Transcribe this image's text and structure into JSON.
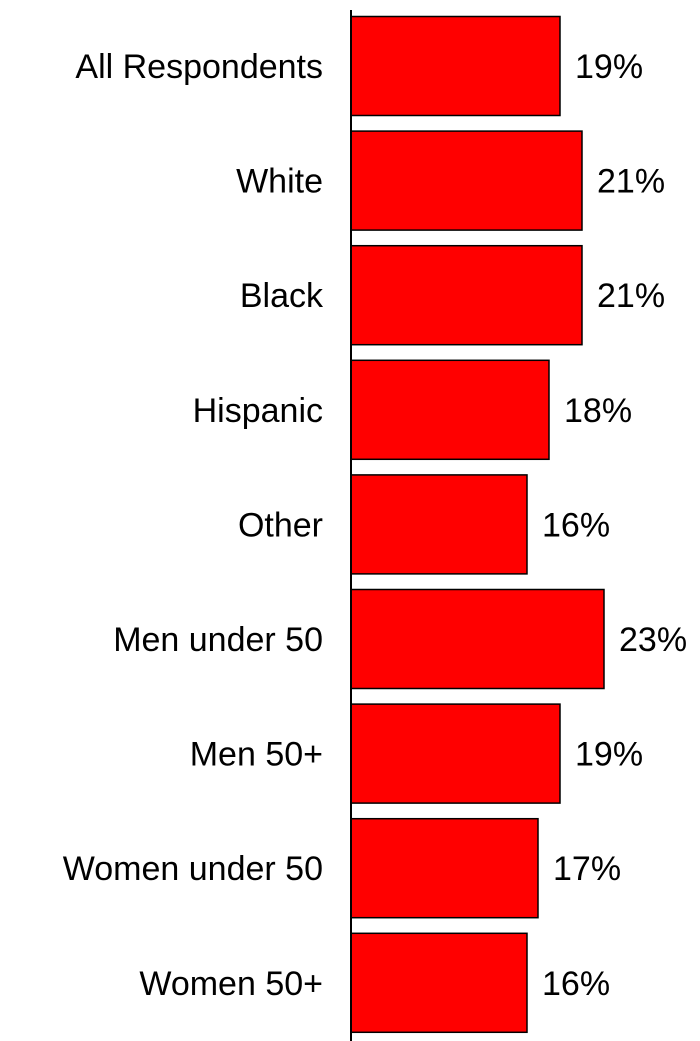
{
  "chart_data": {
    "type": "bar",
    "orientation": "horizontal",
    "categories": [
      "All Respondents",
      "White",
      "Black",
      "Hispanic",
      "Other",
      "Men under 50",
      "Men 50+",
      "Women under 50",
      "Women 50+"
    ],
    "values": [
      19,
      21,
      21,
      18,
      16,
      23,
      19,
      17,
      16
    ],
    "value_labels": [
      "19%",
      "21%",
      "21%",
      "18%",
      "16%",
      "23%",
      "19%",
      "17%",
      "16%"
    ],
    "xlim": [
      0,
      23
    ],
    "grid": false,
    "legend": "none",
    "bar_color": "#ff0000",
    "bar_stroke": "#000000"
  }
}
